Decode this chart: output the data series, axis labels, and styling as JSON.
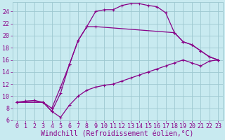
{
  "background_color": "#c8eaf0",
  "grid_color": "#9ec8d0",
  "line_color": "#880088",
  "xlabel": "Windchill (Refroidissement éolien,°C)",
  "xlabel_fontsize": 7.0,
  "tick_fontsize": 6.0,
  "xlim": [
    -0.5,
    23.5
  ],
  "ylim": [
    6,
    25.5
  ],
  "xticks": [
    0,
    1,
    2,
    3,
    4,
    5,
    6,
    7,
    8,
    9,
    10,
    11,
    12,
    13,
    14,
    15,
    16,
    17,
    18,
    19,
    20,
    21,
    22,
    23
  ],
  "yticks": [
    6,
    8,
    10,
    12,
    14,
    16,
    18,
    20,
    22,
    24
  ],
  "curve1_x": [
    0,
    1,
    2,
    3,
    4,
    5,
    6,
    7,
    8,
    9,
    10,
    11,
    12,
    13,
    14,
    15,
    16,
    17,
    18,
    19,
    20,
    21,
    22,
    23
  ],
  "curve1_y": [
    9.0,
    9.2,
    9.3,
    9.0,
    8.0,
    11.5,
    15.2,
    19.2,
    21.5,
    24.0,
    24.3,
    24.3,
    25.0,
    25.3,
    25.3,
    25.0,
    24.8,
    23.8,
    20.5,
    19.0,
    18.5,
    17.5,
    16.5,
    16.0
  ],
  "curve2_x": [
    0,
    3,
    4,
    5,
    6,
    7,
    8,
    9,
    10,
    11,
    12,
    13,
    14,
    15,
    16,
    17,
    18,
    19,
    20,
    21,
    22,
    23
  ],
  "curve2_y": [
    9.0,
    9.0,
    7.5,
    6.5,
    8.5,
    10.0,
    11.0,
    11.5,
    11.8,
    12.0,
    12.5,
    13.0,
    13.5,
    14.0,
    14.5,
    15.0,
    15.5,
    16.0,
    15.5,
    15.0,
    15.8,
    16.0
  ],
  "curve3_x": [
    0,
    3,
    4,
    5,
    6,
    7,
    8,
    9,
    18,
    19,
    20,
    21,
    22,
    23
  ],
  "curve3_y": [
    9.0,
    9.0,
    7.5,
    10.5,
    15.2,
    19.2,
    21.5,
    21.5,
    20.5,
    19.0,
    18.5,
    17.5,
    16.5,
    16.0
  ]
}
